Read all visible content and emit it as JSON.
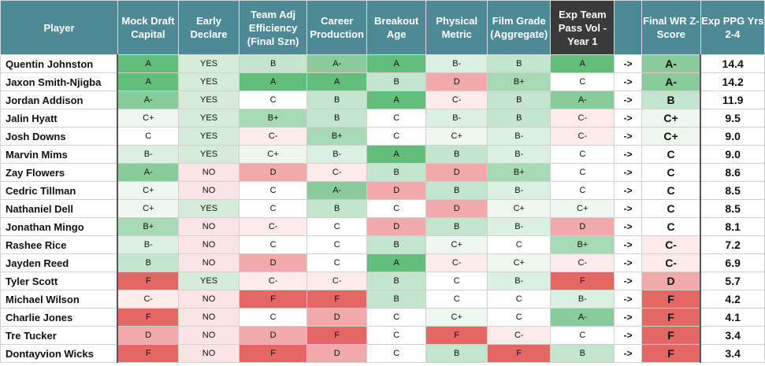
{
  "headers": {
    "player": "Player",
    "mock": "Mock Draft Capital",
    "early": "Early Declare",
    "team_adj": "Team Adj Efficiency (Final Szn)",
    "career": "Career Production",
    "breakout": "Breakout Age",
    "physical": "Physical Metric",
    "film": "Film Grade (Aggregate)",
    "exp_team": "Exp Team Pass Vol - Year 1",
    "blank": "",
    "final_z": "Final WR Z-Score",
    "ppg": "Exp PPG Yrs 2-4"
  },
  "colors": {
    "header_bg": "#4e8a96",
    "header_dark_bg": "#3a3a3a",
    "A": "#63be7b",
    "A-": "#88cc9b",
    "B+": "#a6d9b4",
    "B": "#c2e5cb",
    "B-": "#dcf0e1",
    "C+": "#eef8f0",
    "C": "#ffffff",
    "C-": "#fdebeb",
    "D": "#f2a9a9",
    "F": "#e66666",
    "YES": "#d4ecd9",
    "NO": "#fde4e4"
  },
  "arrow_symbol": "->",
  "rows": [
    {
      "player": "Quentin Johnston",
      "mock": "A",
      "early": "YES",
      "team_adj": "B",
      "career": "A-",
      "breakout": "A",
      "physical": "B-",
      "film": "B",
      "exp_team": "A",
      "final_z": "A-",
      "ppg": "14.4"
    },
    {
      "player": "Jaxon Smith-Njigba",
      "mock": "A",
      "early": "YES",
      "team_adj": "A",
      "career": "A",
      "breakout": "B",
      "physical": "D",
      "film": "B+",
      "exp_team": "C",
      "final_z": "A-",
      "ppg": "14.2"
    },
    {
      "player": "Jordan Addison",
      "mock": "A-",
      "early": "YES",
      "team_adj": "C",
      "career": "B",
      "breakout": "A",
      "physical": "C-",
      "film": "B",
      "exp_team": "A-",
      "final_z": "B",
      "ppg": "11.9"
    },
    {
      "player": "Jalin Hyatt",
      "mock": "C+",
      "early": "YES",
      "team_adj": "B+",
      "career": "B",
      "breakout": "C",
      "physical": "B-",
      "film": "B",
      "exp_team": "C-",
      "final_z": "C+",
      "ppg": "9.5"
    },
    {
      "player": "Josh Downs",
      "mock": "C",
      "early": "YES",
      "team_adj": "C-",
      "career": "B+",
      "breakout": "C",
      "physical": "C+",
      "film": "B-",
      "exp_team": "C-",
      "final_z": "C+",
      "ppg": "9.0"
    },
    {
      "player": "Marvin Mims",
      "mock": "B-",
      "early": "YES",
      "team_adj": "C+",
      "career": "B-",
      "breakout": "A",
      "physical": "B",
      "film": "B-",
      "exp_team": "C",
      "final_z": "C",
      "ppg": "9.0"
    },
    {
      "player": "Zay Flowers",
      "mock": "A-",
      "early": "NO",
      "team_adj": "D",
      "career": "C-",
      "breakout": "B",
      "physical": "D",
      "film": "B+",
      "exp_team": "C",
      "final_z": "C",
      "ppg": "8.6"
    },
    {
      "player": "Cedric Tillman",
      "mock": "C+",
      "early": "NO",
      "team_adj": "C",
      "career": "A-",
      "breakout": "D",
      "physical": "B",
      "film": "B-",
      "exp_team": "C",
      "final_z": "C",
      "ppg": "8.5"
    },
    {
      "player": "Nathaniel Dell",
      "mock": "C+",
      "early": "YES",
      "team_adj": "C",
      "career": "B",
      "breakout": "C",
      "physical": "D",
      "film": "C+",
      "exp_team": "C+",
      "final_z": "C",
      "ppg": "8.5"
    },
    {
      "player": "Jonathan Mingo",
      "mock": "B+",
      "early": "NO",
      "team_adj": "C-",
      "career": "C",
      "breakout": "D",
      "physical": "B",
      "film": "B-",
      "exp_team": "D",
      "final_z": "C",
      "ppg": "8.1"
    },
    {
      "player": "Rashee Rice",
      "mock": "B-",
      "early": "NO",
      "team_adj": "C",
      "career": "C",
      "breakout": "B",
      "physical": "C+",
      "film": "C",
      "exp_team": "B+",
      "final_z": "C-",
      "ppg": "7.2"
    },
    {
      "player": "Jayden Reed",
      "mock": "B",
      "early": "NO",
      "team_adj": "D",
      "career": "C",
      "breakout": "A",
      "physical": "C-",
      "film": "C+",
      "exp_team": "C-",
      "final_z": "C-",
      "ppg": "6.9"
    },
    {
      "player": "Tyler Scott",
      "mock": "F",
      "early": "YES",
      "team_adj": "C-",
      "career": "C-",
      "breakout": "B",
      "physical": "C",
      "film": "B-",
      "exp_team": "F",
      "final_z": "D",
      "ppg": "5.7"
    },
    {
      "player": "Michael Wilson",
      "mock": "C-",
      "early": "NO",
      "team_adj": "F",
      "career": "F",
      "breakout": "B",
      "physical": "C",
      "film": "C",
      "exp_team": "B-",
      "final_z": "F",
      "ppg": "4.2"
    },
    {
      "player": "Charlie Jones",
      "mock": "F",
      "early": "NO",
      "team_adj": "C",
      "career": "D",
      "breakout": "C",
      "physical": "C+",
      "film": "C",
      "exp_team": "A-",
      "final_z": "F",
      "ppg": "4.1"
    },
    {
      "player": "Tre Tucker",
      "mock": "D",
      "early": "NO",
      "team_adj": "D",
      "career": "F",
      "breakout": "C",
      "physical": "F",
      "film": "C-",
      "exp_team": "C",
      "final_z": "F",
      "ppg": "3.4"
    },
    {
      "player": "Dontayvion Wicks",
      "mock": "F",
      "early": "NO",
      "team_adj": "F",
      "career": "D",
      "breakout": "C",
      "physical": "B",
      "film": "F",
      "exp_team": "B",
      "final_z": "F",
      "ppg": "3.4"
    }
  ]
}
